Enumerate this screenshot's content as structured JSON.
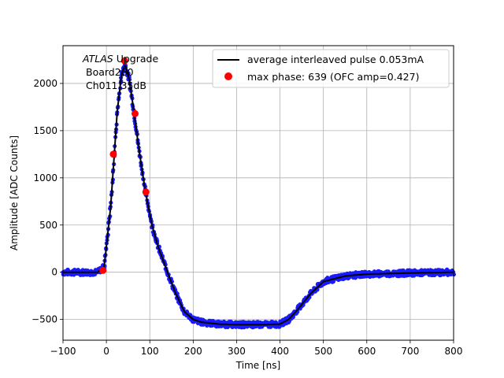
{
  "chart_data": {
    "type": "scatter",
    "xlabel": "Time [ns]",
    "ylabel": "Amplitude [ADC Counts]",
    "xlim": [
      -100,
      800
    ],
    "ylim": [
      -720,
      2400
    ],
    "xticks": [
      "−100",
      "0",
      "100",
      "200",
      "300",
      "400",
      "500",
      "600",
      "700",
      "800"
    ],
    "xtick_values": [
      -100,
      0,
      100,
      200,
      300,
      400,
      500,
      600,
      700,
      800
    ],
    "yticks": [
      "−500",
      "0",
      "500",
      "1000",
      "1500",
      "2000"
    ],
    "ytick_values": [
      -500,
      0,
      500,
      1000,
      1500,
      2000
    ],
    "grid": true,
    "legend_position": "top-right",
    "annotation": {
      "line1_italic": "ATLAS",
      "line1_rest": " Upgrade",
      "line2": "Board260",
      "line3": "Ch011 35dB"
    },
    "series": [
      {
        "name": "average interleaved pulse 0.053mA",
        "style": "line",
        "color": "#000000",
        "points": [
          [
            -100,
            0
          ],
          [
            -20,
            0
          ],
          [
            -5,
            60
          ],
          [
            10,
            700
          ],
          [
            25,
            1700
          ],
          [
            35,
            2100
          ],
          [
            43,
            2200
          ],
          [
            52,
            2050
          ],
          [
            62,
            1750
          ],
          [
            75,
            1300
          ],
          [
            90,
            850
          ],
          [
            105,
            500
          ],
          [
            120,
            260
          ],
          [
            140,
            10
          ],
          [
            160,
            -230
          ],
          [
            180,
            -420
          ],
          [
            200,
            -500
          ],
          [
            220,
            -530
          ],
          [
            260,
            -550
          ],
          [
            300,
            -555
          ],
          [
            360,
            -555
          ],
          [
            400,
            -550
          ],
          [
            420,
            -500
          ],
          [
            440,
            -400
          ],
          [
            470,
            -230
          ],
          [
            500,
            -100
          ],
          [
            550,
            -40
          ],
          [
            600,
            -20
          ],
          [
            700,
            -8
          ],
          [
            800,
            0
          ]
        ]
      },
      {
        "name": "max phase: 639 (OFC amp=0.427)",
        "style": "markers",
        "color": "#ff0000",
        "points": [
          [
            -8,
            20
          ],
          [
            16,
            1250
          ],
          [
            42,
            2240
          ],
          [
            66,
            1680
          ],
          [
            91,
            850
          ]
        ]
      }
    ],
    "scatter_color": "#1a1aff"
  }
}
